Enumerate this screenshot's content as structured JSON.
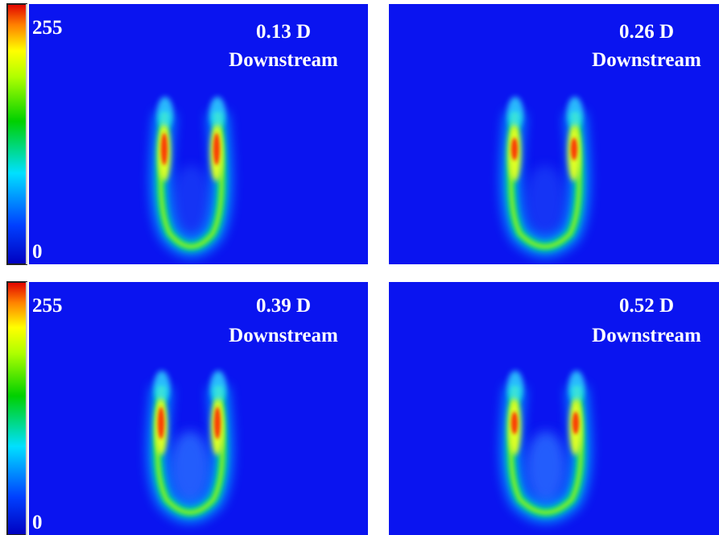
{
  "panels": [
    {
      "scale_max": "255",
      "scale_min": "0",
      "distance": "0.13 D",
      "label": "Downstream"
    },
    {
      "distance": "0.26 D",
      "label": "Downstream"
    },
    {
      "scale_max": "255",
      "scale_min": "0",
      "distance": "0.39 D",
      "label": "Downstream"
    },
    {
      "distance": "0.52 D",
      "label": "Downstream"
    }
  ]
}
